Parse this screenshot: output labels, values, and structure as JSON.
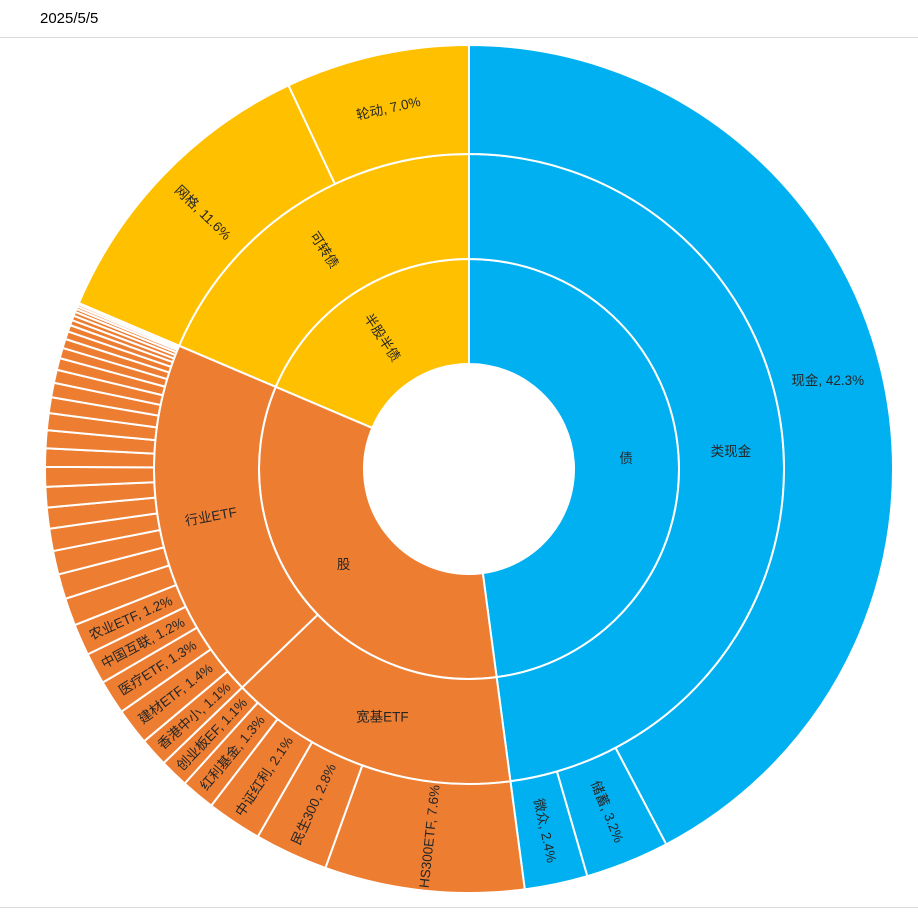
{
  "header": {
    "date": "2025/5/5"
  },
  "chart_data": {
    "type": "sunburst",
    "unit": "%",
    "start_angle_deg": 0,
    "direction": "clockwise",
    "rings": 3,
    "legend": "none",
    "label_color": "#262626",
    "stroke_color": "#ffffff",
    "label_format": "name, value%",
    "branches": [
      {
        "name": "债",
        "color": "#00B0F0",
        "children": [
          {
            "name": "类现金",
            "children": [
              {
                "name": "现金",
                "value": 42.3,
                "orient": "h"
              },
              {
                "name": "储蓄",
                "value": 3.2
              },
              {
                "name": "微众",
                "value": 2.4
              }
            ]
          }
        ]
      },
      {
        "name": "股",
        "color": "#ED7D31",
        "children": [
          {
            "name": "宽基ETF",
            "orient": "h",
            "children": [
              {
                "name": "HS300ETF",
                "value": 7.6
              },
              {
                "name": "民生300",
                "value": 2.8
              },
              {
                "name": "中证红利",
                "value": 2.1
              },
              {
                "name": "红利基金",
                "value": 1.3
              },
              {
                "name": "创业板EF",
                "value": 1.1
              }
            ]
          },
          {
            "name": "行业ETF",
            "orient": "r",
            "children": [
              {
                "name": "香港中小",
                "value": 1.1
              },
              {
                "name": "建材ETF",
                "value": 1.4
              },
              {
                "name": "医疗ETF",
                "value": 1.3
              },
              {
                "name": "中国互联",
                "value": 1.2
              },
              {
                "name": "农业ETF",
                "value": 1.2
              },
              {
                "value": 1.05,
                "label": false
              },
              {
                "value": 0.95,
                "label": false
              },
              {
                "value": 0.9,
                "label": false
              },
              {
                "value": 0.85,
                "label": false
              },
              {
                "value": 0.8,
                "label": false
              },
              {
                "value": 0.78,
                "label": false
              },
              {
                "value": 0.75,
                "label": false
              },
              {
                "value": 0.7,
                "label": false
              },
              {
                "value": 0.68,
                "label": false
              },
              {
                "value": 0.65,
                "label": false
              },
              {
                "value": 0.6,
                "label": false
              },
              {
                "value": 0.55,
                "label": false
              },
              {
                "value": 0.5,
                "label": false
              },
              {
                "value": 0.45,
                "label": false
              },
              {
                "value": 0.4,
                "label": false
              },
              {
                "value": 0.35,
                "label": false
              },
              {
                "value": 0.3,
                "label": false
              },
              {
                "value": 0.25,
                "label": false
              },
              {
                "value": 0.2,
                "label": false
              },
              {
                "value": 0.18,
                "label": false
              },
              {
                "value": 0.15,
                "label": false
              },
              {
                "value": 0.12,
                "label": false
              },
              {
                "value": 0.1,
                "label": false
              },
              {
                "value": 0.09,
                "label": false
              },
              {
                "value": 0.05,
                "label": false
              }
            ]
          }
        ]
      },
      {
        "name": "半股半债",
        "orient": "r",
        "color": "#FFC000",
        "children": [
          {
            "name": "可转债",
            "orient": "r",
            "children": [
              {
                "name": "网格",
                "value": 11.6
              },
              {
                "name": "轮动",
                "value": 7.0,
                "orient": "t"
              }
            ]
          }
        ]
      }
    ]
  }
}
